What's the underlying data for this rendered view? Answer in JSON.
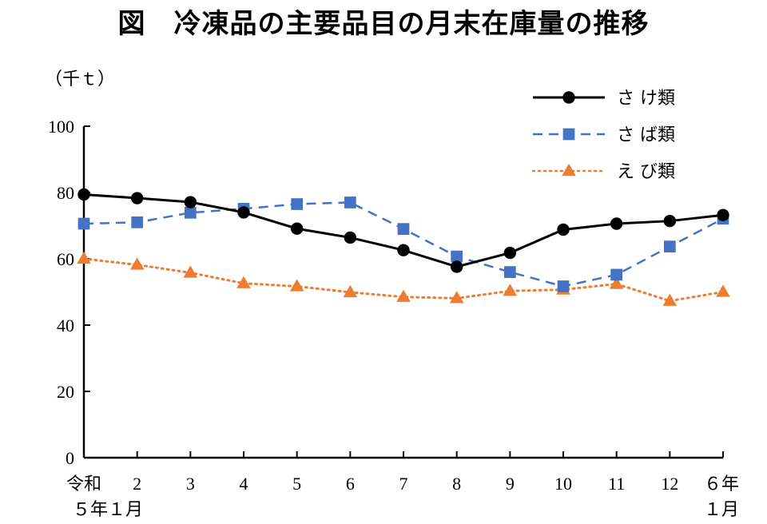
{
  "chart_data": {
    "type": "line",
    "title": "図　冷凍品の主要品目の月末在庫量の推移",
    "ylabel": "（千ｔ）",
    "ylim": [
      0,
      100
    ],
    "yticks": [
      0,
      20,
      40,
      60,
      80,
      100
    ],
    "categories": [
      "令和5年1月",
      "2",
      "3",
      "4",
      "5",
      "6",
      "7",
      "8",
      "9",
      "10",
      "11",
      "12",
      "6年1月"
    ],
    "category_labels": [
      [
        "令和",
        "５年１月"
      ],
      [
        "2"
      ],
      [
        "3"
      ],
      [
        "4"
      ],
      [
        "5"
      ],
      [
        "6"
      ],
      [
        "7"
      ],
      [
        "8"
      ],
      [
        "9"
      ],
      [
        "10"
      ],
      [
        "11"
      ],
      [
        "12"
      ],
      [
        "６年",
        "１月"
      ]
    ],
    "legend_position": "top-right",
    "grid": false,
    "series": [
      {
        "name": "さ け類",
        "values": [
          79.4,
          78.3,
          77.1,
          74.0,
          69.1,
          66.4,
          62.6,
          57.6,
          61.8,
          68.8,
          70.6,
          71.4,
          73.2
        ],
        "color": "#000000",
        "dash": "solid",
        "marker": "circle"
      },
      {
        "name": "さ ば類",
        "values": [
          70.6,
          71.0,
          73.9,
          75.1,
          76.5,
          77.0,
          69.0,
          60.7,
          56.0,
          51.7,
          55.2,
          63.7,
          72.1
        ],
        "color": "#4472c4",
        "dash": "dashed",
        "marker": "square"
      },
      {
        "name": "え び類",
        "values": [
          60.0,
          58.2,
          55.8,
          52.6,
          51.7,
          49.9,
          48.5,
          48.1,
          50.3,
          50.7,
          52.4,
          47.3,
          50.0
        ],
        "color": "#ed7d31",
        "dash": "dotted",
        "marker": "triangle"
      }
    ]
  }
}
